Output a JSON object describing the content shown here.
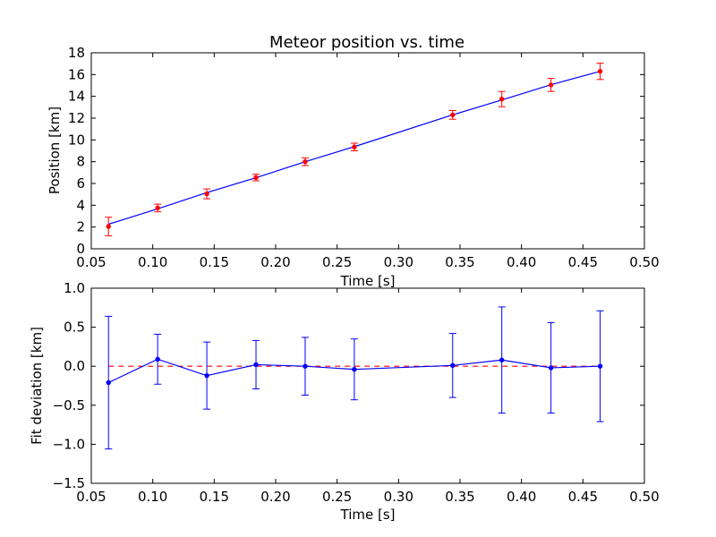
{
  "chart_data": [
    {
      "type": "scatter",
      "title": "Meteor position vs. time",
      "xlabel": "Time [s]",
      "ylabel": "Position [km]",
      "xlim": [
        0.05,
        0.5
      ],
      "ylim": [
        0,
        18
      ],
      "xticks": [
        "0.05",
        "0.10",
        "0.15",
        "0.20",
        "0.25",
        "0.30",
        "0.35",
        "0.40",
        "0.45",
        "0.50"
      ],
      "yticks": [
        "0",
        "2",
        "4",
        "6",
        "8",
        "10",
        "12",
        "14",
        "16",
        "18"
      ],
      "grid": false,
      "series": [
        {
          "kind": "measured points with error bars",
          "color": "#ff0000",
          "x": [
            0.064,
            0.104,
            0.144,
            0.184,
            0.224,
            0.264,
            0.344,
            0.384,
            0.424,
            0.464
          ],
          "y": [
            2.05,
            3.75,
            5.05,
            6.55,
            8.0,
            9.35,
            12.3,
            13.75,
            15.05,
            16.3
          ],
          "err": [
            0.85,
            0.35,
            0.45,
            0.3,
            0.35,
            0.35,
            0.4,
            0.7,
            0.6,
            0.75
          ]
        },
        {
          "kind": "linear fit",
          "color": "#0000ff",
          "x": [
            0.064,
            0.104,
            0.144,
            0.184,
            0.224,
            0.264,
            0.344,
            0.384,
            0.424,
            0.464
          ],
          "y": [
            2.26,
            3.67,
            5.16,
            6.53,
            8.0,
            9.38,
            12.3,
            13.67,
            15.07,
            16.3
          ]
        }
      ]
    },
    {
      "type": "line",
      "xlabel": "Time [s]",
      "ylabel": "Fit deviation [km]",
      "xlim": [
        0.05,
        0.5
      ],
      "ylim": [
        -1.5,
        1.0
      ],
      "xticks": [
        "0.05",
        "0.10",
        "0.15",
        "0.20",
        "0.25",
        "0.30",
        "0.35",
        "0.40",
        "0.45",
        "0.50"
      ],
      "yticks": [
        "−1.5",
        "−1.0",
        "−0.5",
        "0.0",
        "0.5",
        "1.0"
      ],
      "grid": false,
      "reference_line": {
        "y": 0,
        "color": "#ff0000",
        "style": "dashed"
      },
      "series": [
        {
          "color": "#0000ff",
          "x": [
            0.064,
            0.104,
            0.144,
            0.184,
            0.224,
            0.264,
            0.344,
            0.384,
            0.424,
            0.464
          ],
          "y": [
            -0.21,
            0.09,
            -0.12,
            0.02,
            0.0,
            -0.04,
            0.01,
            0.08,
            -0.02,
            0.0
          ],
          "err": [
            0.85,
            0.32,
            0.43,
            0.31,
            0.37,
            0.39,
            0.41,
            0.68,
            0.58,
            0.71
          ]
        }
      ]
    }
  ]
}
